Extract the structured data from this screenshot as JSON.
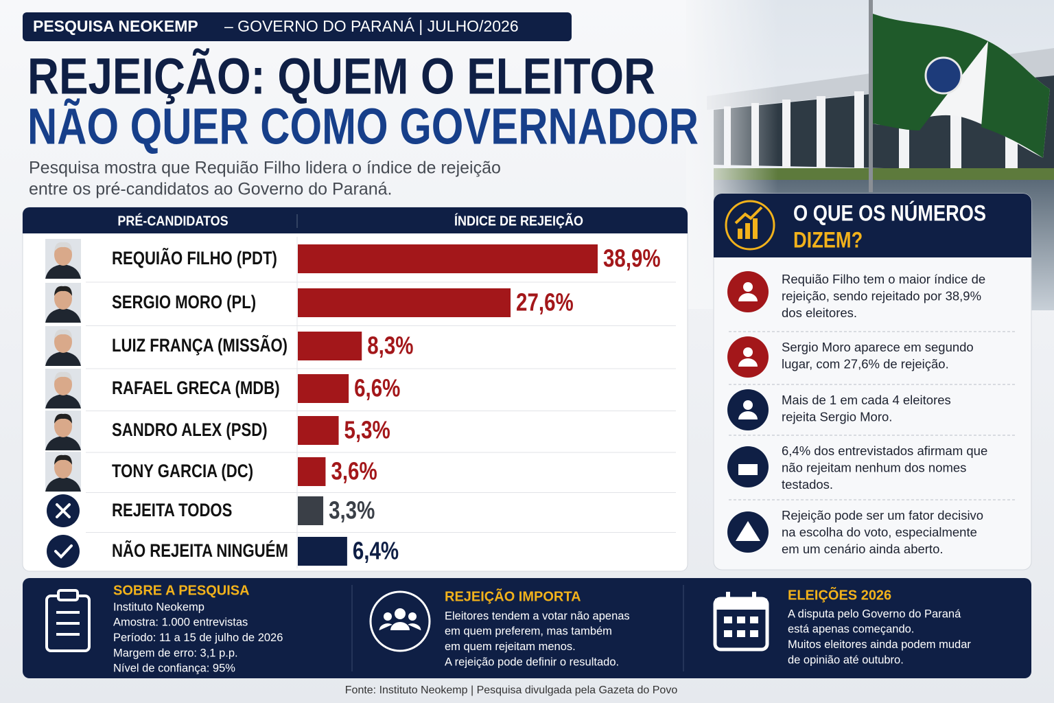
{
  "header": {
    "badge_bold": "PESQUISA NEOKEMP",
    "badge_rest": "– GOVERNO DO PARANÁ | JULHO/2026",
    "title_line1": "REJEIÇÃO: QUEM O ELEITOR",
    "title_line2": "NÃO QUER COMO GOVERNADOR",
    "subtitle_lines": [
      "Pesquisa mostra que Requião Filho lidera o índice de rejeição",
      "entre os pré-candidatos ao Governo do Paraná."
    ]
  },
  "chart_data": {
    "type": "bar",
    "orientation": "horizontal",
    "category_header": "PRÉ-CANDIDATOS",
    "value_header": "ÍNDICE DE REJEIÇÃO",
    "categories": [
      "REQUIÃO FILHO (PDT)",
      "SERGIO MORO (PL)",
      "LUIZ FRANÇA (MISSÃO)",
      "RAFAEL GRECA (MDB)",
      "SANDRO ALEX (PSD)",
      "TONY GARCIA (DC)",
      "REJEITA TODOS",
      "NÃO REJEITA NINGUÉM"
    ],
    "values": [
      38.9,
      27.6,
      8.3,
      6.6,
      5.3,
      3.6,
      3.3,
      6.4
    ],
    "value_labels": [
      "38,9%",
      "27,6%",
      "8,3%",
      "6,6%",
      "5,3%",
      "3,6%",
      "3,3%",
      "6,4%"
    ],
    "colors": [
      "#a3171a",
      "#a3171a",
      "#a3171a",
      "#a3171a",
      "#a3171a",
      "#a3171a",
      "#3a3f47",
      "#0f1f45"
    ]
  },
  "insights": {
    "title_line1": "O QUE OS NÚMEROS",
    "title_line2": "DIZEM?",
    "items": [
      {
        "lines": [
          "Requião Filho tem o maior índice de",
          "rejeição, sendo rejeitado por 38,9%",
          "dos eleitores."
        ]
      },
      {
        "lines": [
          "Sergio Moro aparece em segundo",
          "lugar, com 27,6% de rejeição."
        ]
      },
      {
        "lines": [
          "Mais de 1 em cada 4 eleitores",
          "rejeita Sergio Moro."
        ]
      },
      {
        "lines": [
          "6,4% dos entrevistados afirmam que",
          "não rejeitam nenhum dos nomes",
          "testados."
        ]
      },
      {
        "lines": [
          "Rejeição pode ser um fator decisivo",
          "na escolha do voto, especialmente",
          "em um cenário ainda aberto."
        ]
      }
    ]
  },
  "footer": {
    "sections": [
      {
        "title": "SOBRE A PESQUISA",
        "lines": [
          "Instituto Neokemp",
          "Amostra: 1.000 entrevistas",
          "Período: 11 a 15 de julho de 2026",
          "Margem de erro: 3,1 p.p.",
          "Nível de confiança: 95%"
        ]
      },
      {
        "title": "REJEIÇÃO IMPORTA",
        "lines": [
          "Eleitores tendem a votar não apenas",
          "em quem preferem, mas também",
          "em quem rejeitam menos.",
          "A rejeição pode definir o resultado."
        ]
      },
      {
        "title": "ELEIÇÕES 2026",
        "lines": [
          "A disputa pelo Governo do Paraná",
          "está apenas começando.",
          "Muitos eleitores ainda podem mudar",
          "de opinião até outubro."
        ]
      }
    ],
    "source": "Fonte: Instituto Neokemp | Pesquisa divulgada pela Gazeta do Povo"
  }
}
